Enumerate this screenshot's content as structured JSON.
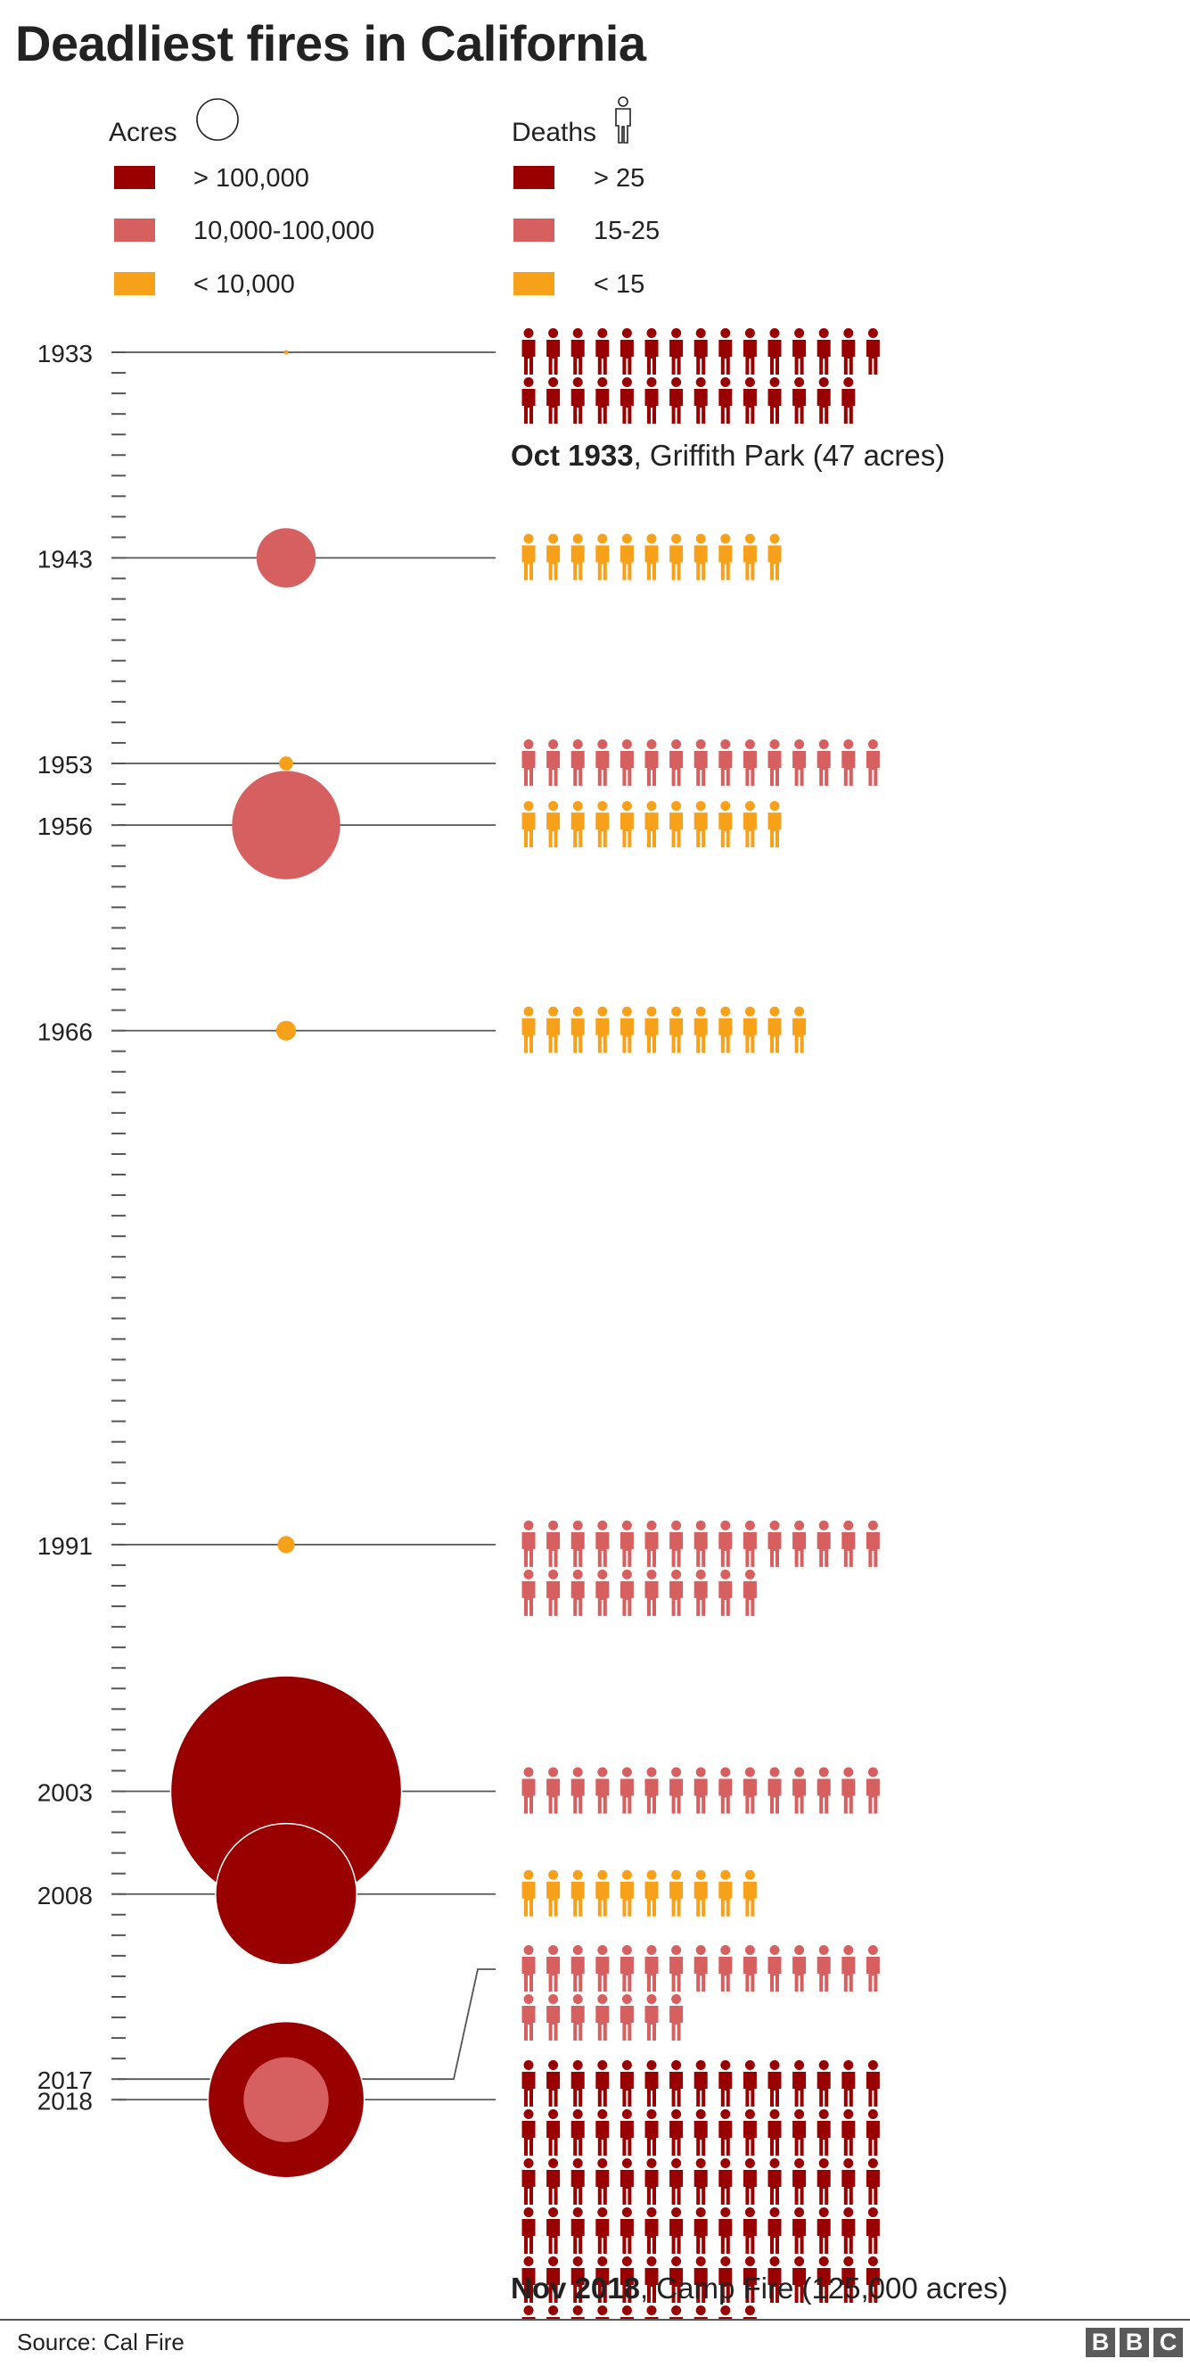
{
  "title": "Deadliest fires in California",
  "source": "Source: Cal Fire",
  "logo": [
    "B",
    "B",
    "C"
  ],
  "legend": {
    "acres": {
      "title": "Acres",
      "items": [
        {
          "label": "> 100,000",
          "color": "#990000"
        },
        {
          "label": "10,000-100,000",
          "color": "#d5605f"
        },
        {
          "label": "< 10,000",
          "color": "#f7a11a"
        }
      ]
    },
    "deaths": {
      "title": "Deaths",
      "items": [
        {
          "label": "> 25",
          "color": "#990000"
        },
        {
          "label": "15-25",
          "color": "#d5605f"
        },
        {
          "label": "< 15",
          "color": "#f7a11a"
        }
      ]
    }
  },
  "colors": {
    "large": "#990000",
    "medium": "#d5605f",
    "small": "#f7a11a",
    "axis": "#555555"
  },
  "chart_data": {
    "type": "scatter",
    "x_axis": "year",
    "xlim": [
      1933,
      2018
    ],
    "fires": [
      {
        "year": 1933,
        "acres": 47,
        "deaths": 29,
        "acres_color": "#f7a11a",
        "deaths_color": "#990000"
      },
      {
        "year": 1943,
        "acres": 18000,
        "deaths": 11,
        "acres_color": "#d5605f",
        "deaths_color": "#f7a11a"
      },
      {
        "year": 1953,
        "acres": 1000,
        "deaths": 15,
        "acres_color": "#f7a11a",
        "deaths_color": "#d5605f"
      },
      {
        "year": 1956,
        "acres": 60000,
        "deaths": 11,
        "acres_color": "#d5605f",
        "deaths_color": "#f7a11a"
      },
      {
        "year": 1966,
        "acres": 2000,
        "deaths": 12,
        "acres_color": "#f7a11a",
        "deaths_color": "#f7a11a"
      },
      {
        "year": 1991,
        "acres": 1500,
        "deaths": 25,
        "acres_color": "#f7a11a",
        "deaths_color": "#d5605f"
      },
      {
        "year": 2003,
        "acres": 273000,
        "deaths": 15,
        "acres_color": "#990000",
        "deaths_color": "#d5605f"
      },
      {
        "year": 2008,
        "acres": 102000,
        "deaths": 10,
        "acres_color": "#990000",
        "deaths_color": "#f7a11a"
      },
      {
        "year": 2017,
        "acres": 37000,
        "deaths": 22,
        "acres_color": "#d5605f",
        "deaths_color": "#d5605f"
      },
      {
        "year": 2018,
        "acres": 125000,
        "deaths": 85,
        "acres_color": "#990000",
        "deaths_color": "#990000"
      }
    ],
    "year_labels": [
      "1933",
      "1943",
      "1953",
      "1956",
      "1966",
      "1991",
      "2003",
      "2008",
      "2017",
      "2018"
    ],
    "annotations": [
      {
        "year": 1933,
        "bold": "Oct 1933",
        "text": ", Griffith Park (47 acres)"
      },
      {
        "year": 2018,
        "bold": "Nov 2018",
        "text": ", Camp Fire (125,000 acres)"
      }
    ]
  }
}
